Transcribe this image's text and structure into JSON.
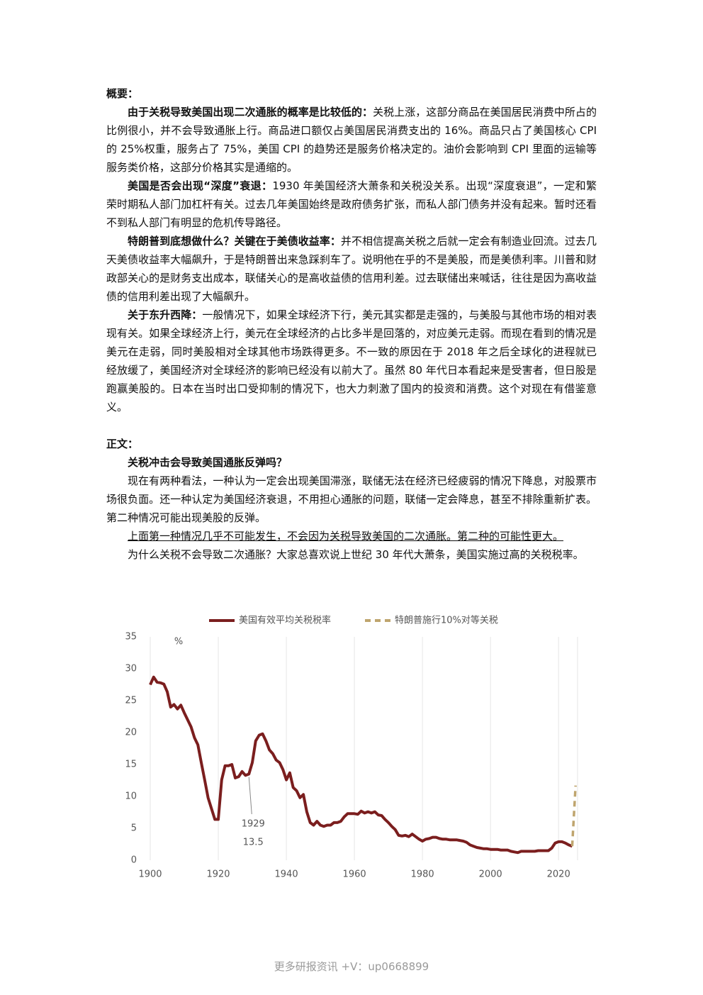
{
  "summary": {
    "heading": "概要：",
    "paragraphs": [
      {
        "bold": "由于关税导致美国出现二次通胀的概率是比较低的：",
        "text": "关税上涨，这部分商品在美国居民消费中所占的比例很小，并不会导致通胀上行。商品进口额仅占美国居民消费支出的 16%。商品只占了美国核心 CPI 的 25%权重，服务占了 75%，美国 CPI 的趋势还是服务价格决定的。油价会影响到 CPI 里面的运输等服务类价格，这部分价格其实是通缩的。"
      },
      {
        "bold": "美国是否会出现“深度”衰退：",
        "text": "1930 年美国经济大萧条和关税没关系。出现“深度衰退”，一定和繁荣时期私人部门加杠杆有关。过去几年美国始终是政府债务扩张，而私人部门债务并没有起来。暂时还看不到私人部门有明显的危机传导路径。"
      },
      {
        "bold": "特朗普到底想做什么？关键在于美债收益率：",
        "text": "并不相信提高关税之后就一定会有制造业回流。过去几天美债收益率大幅飙升，于是特朗普出来急踩刹车了。说明他在乎的不是美股，而是美债利率。川普和财政部关心的是财务支出成本，联储关心的是高收益债的信用利差。过去联储出来喊话，往往是因为高收益债的信用利差出现了大幅飙升。"
      },
      {
        "bold": "关于东升西降：",
        "text": "一般情况下，如果全球经济下行，美元其实都是走强的，与美股与其他市场的相对表现有关。如果全球经济上行，美元在全球经济的占比多半是回落的，对应美元走弱。而现在看到的情况是美元在走弱，同时美股相对全球其他市场跌得更多。不一致的原因在于 2018 年之后全球化的进程就已经放缓了，美国经济对全球经济的影响已经没有以前大了。虽然 80 年代日本看起来是受害者，但日股是跑赢美股的。日本在当时出口受抑制的情况下，也大力刺激了国内的投资和消费。这个对现在有借鉴意义。"
      }
    ]
  },
  "body": {
    "heading": "正文：",
    "subheading": "关税冲击会导致美国通胀反弹吗？",
    "paragraphs": [
      "现在有两种看法，一种认为一定会出现美国滞涨，联储无法在经济已经疲弱的情况下降息，对股票市场很负面。还一种认定为美国经济衰退，不用担心通胀的问题，联储一定会降息，甚至不排除重新扩表。第二种情况可能出现美股的反弹。"
    ],
    "underlined": "上面第一种情况几乎不可能发生，不会因为关税导致美国的二次通胀。第二种的可能性更大。",
    "closing": "为什么关税不会导致二次通胀？大家总喜欢说上世纪 30 年代大萧条，美国实施过高的关税税率。"
  },
  "chart_data": {
    "type": "line",
    "y_label": "%",
    "xlim": [
      1900,
      2026
    ],
    "xticks": [
      1900,
      1920,
      1940,
      1960,
      1980,
      2000,
      2020
    ],
    "ylim": [
      0,
      35
    ],
    "yticks": [
      0,
      5,
      10,
      15,
      20,
      25,
      30,
      35
    ],
    "grid": "x",
    "series": [
      {
        "name": "美国有效平均关税税率",
        "color": "#7b1e1e",
        "dash": false,
        "x": [
          1900,
          1901,
          1902,
          1903,
          1904,
          1905,
          1906,
          1907,
          1908,
          1909,
          1910,
          1911,
          1912,
          1913,
          1914,
          1915,
          1916,
          1917,
          1918,
          1919,
          1920,
          1921,
          1922,
          1923,
          1924,
          1925,
          1926,
          1927,
          1928,
          1929,
          1930,
          1931,
          1932,
          1933,
          1934,
          1935,
          1936,
          1937,
          1938,
          1939,
          1940,
          1941,
          1942,
          1943,
          1944,
          1945,
          1946,
          1947,
          1948,
          1949,
          1950,
          1951,
          1952,
          1953,
          1954,
          1955,
          1956,
          1957,
          1958,
          1959,
          1960,
          1961,
          1962,
          1963,
          1964,
          1965,
          1966,
          1967,
          1968,
          1969,
          1970,
          1971,
          1972,
          1973,
          1974,
          1975,
          1976,
          1977,
          1978,
          1979,
          1980,
          1981,
          1982,
          1983,
          1984,
          1985,
          1986,
          1987,
          1988,
          1989,
          1990,
          1991,
          1992,
          1993,
          1994,
          1995,
          1996,
          1997,
          1998,
          1999,
          2000,
          2001,
          2002,
          2003,
          2004,
          2005,
          2006,
          2007,
          2008,
          2009,
          2010,
          2011,
          2012,
          2013,
          2014,
          2015,
          2016,
          2017,
          2018,
          2019,
          2020,
          2021,
          2022,
          2023,
          2024
        ],
        "values": [
          27.5,
          28.7,
          27.9,
          27.8,
          27.6,
          26.4,
          24,
          24.4,
          23.7,
          24.3,
          23.1,
          22,
          20.9,
          19.2,
          18.1,
          15.3,
          12.6,
          9.8,
          8.1,
          6.4,
          6.4,
          12.6,
          14.8,
          14.8,
          15,
          12.9,
          13.1,
          13.9,
          13.3,
          13.5,
          15.3,
          18.7,
          19.6,
          19.8,
          18.7,
          17.3,
          16.7,
          15.7,
          15.3,
          14.2,
          12.6,
          13.7,
          11.4,
          10.9,
          9.8,
          10.3,
          7.6,
          5.9,
          5.5,
          6.1,
          5.5,
          5.3,
          5.5,
          5.5,
          5.9,
          5.9,
          6.1,
          6.8,
          7.3,
          7.3,
          7.3,
          7.2,
          7.7,
          7.4,
          7.6,
          7.4,
          7.6,
          7.1,
          7,
          6.4,
          5.9,
          5.3,
          4.8,
          3.9,
          3.8,
          3.9,
          3.7,
          4.1,
          3.7,
          3.3,
          3,
          3.3,
          3.4,
          3.6,
          3.6,
          3.4,
          3.3,
          3.3,
          3.2,
          3.2,
          3.2,
          3.1,
          3,
          2.8,
          2.4,
          2.2,
          2,
          1.9,
          1.8,
          1.8,
          1.7,
          1.7,
          1.7,
          1.6,
          1.6,
          1.6,
          1.4,
          1.3,
          1.2,
          1.4,
          1.4,
          1.4,
          1.4,
          1.4,
          1.5,
          1.5,
          1.5,
          1.5,
          1.9,
          2.7,
          2.9,
          2.9,
          2.7,
          2.4,
          2.2
        ]
      },
      {
        "name": "特朗普施行10%对等关税",
        "color": "#bfa56e",
        "dash": true,
        "x": [
          2024,
          2025
        ],
        "values": [
          2.2,
          11.7
        ]
      }
    ],
    "annotations": [
      {
        "x": 1929,
        "y": 13.5
      }
    ]
  },
  "footer": "更多研报资讯 +V：up0668899"
}
